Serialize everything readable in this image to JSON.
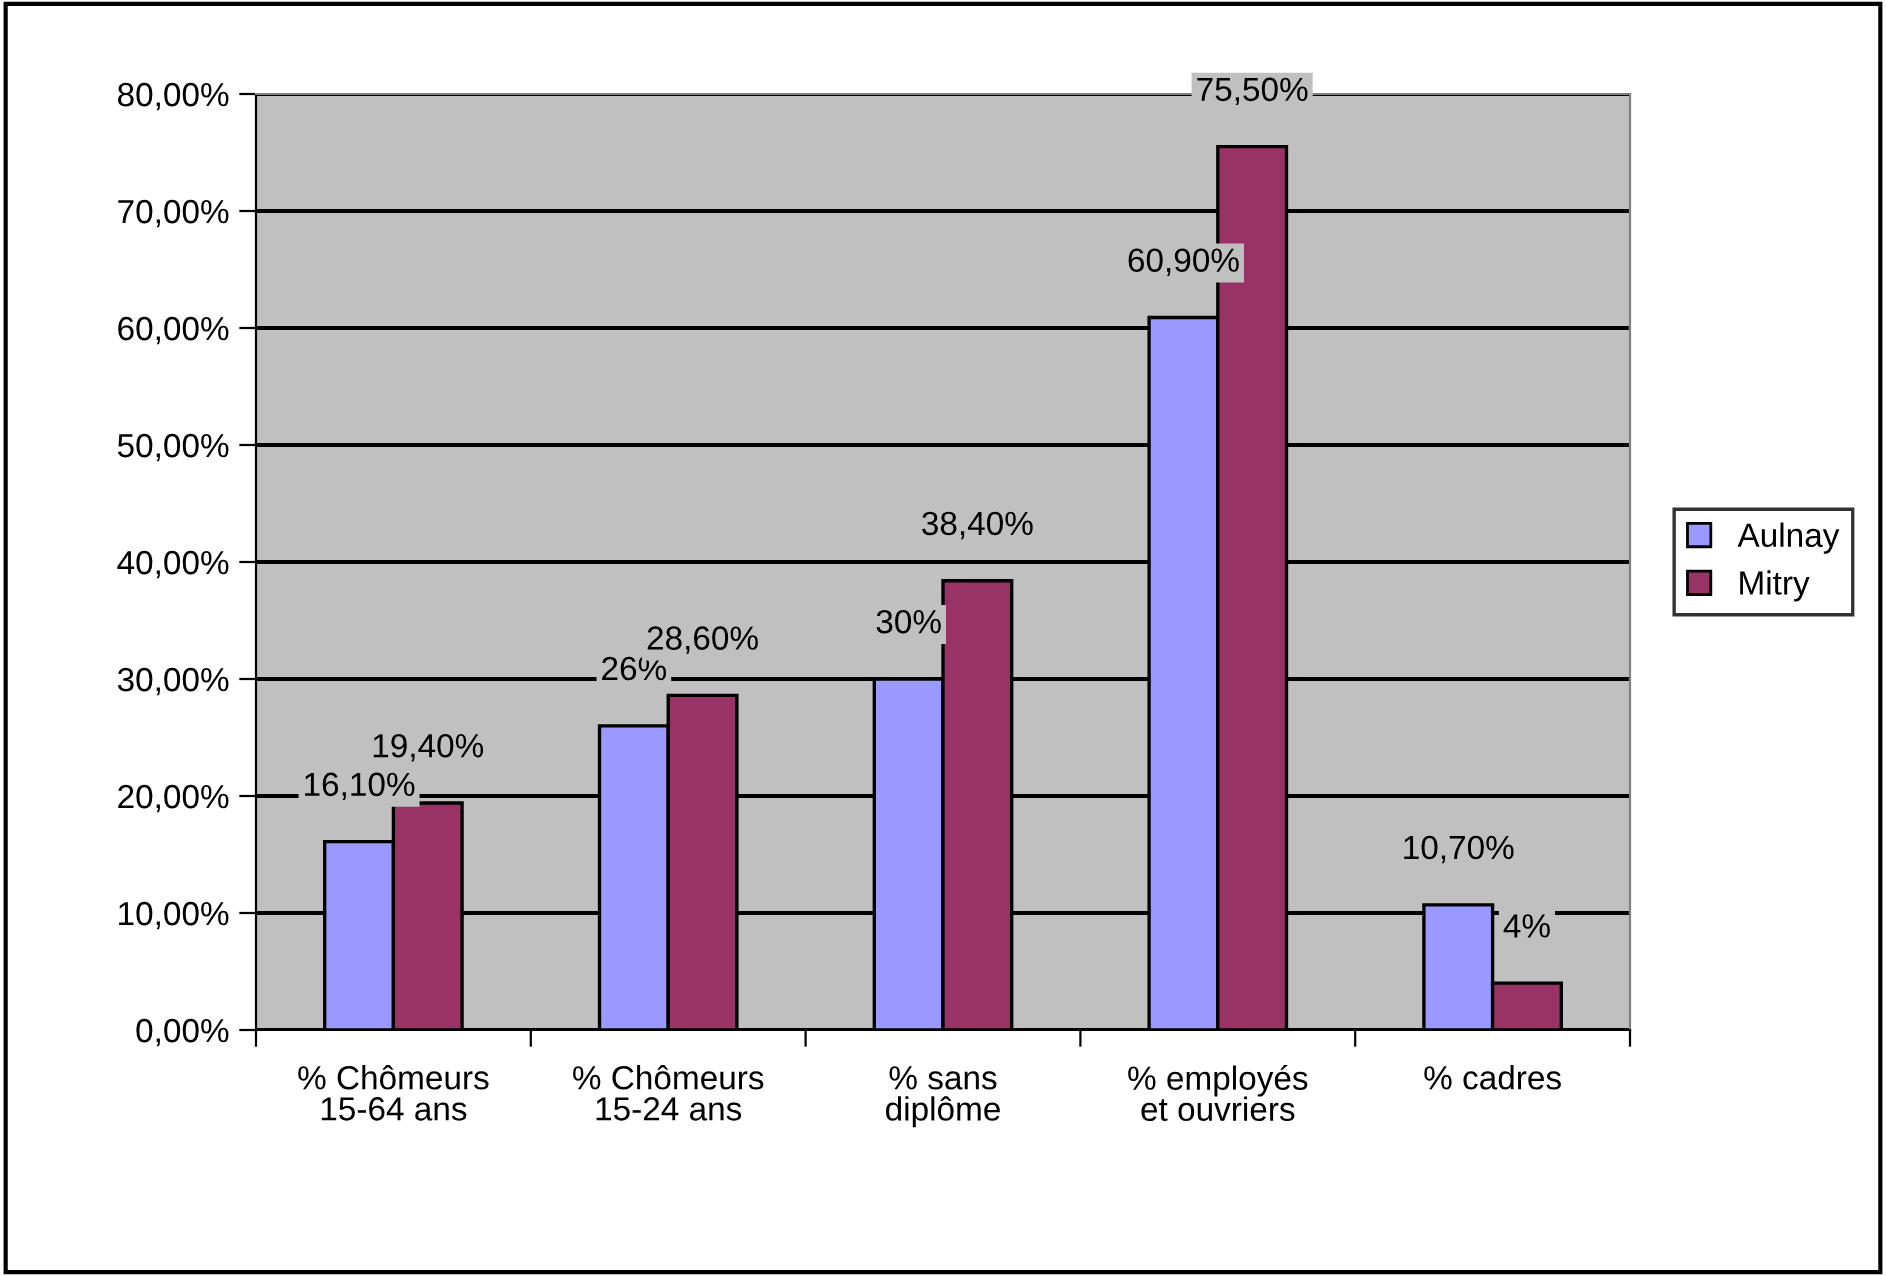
{
  "chart_data": {
    "type": "bar",
    "categories": [
      "% Chômeurs\n15-64 ans",
      "% Chômeurs\n15-24 ans",
      "% sans\ndiplôme",
      "% employés\net ouvriers",
      "% cadres"
    ],
    "series": [
      {
        "name": "Aulnay",
        "color": "#9999ff",
        "values": [
          16.1,
          26,
          30,
          60.9,
          10.7
        ],
        "value_labels": [
          "16,10%",
          "26%",
          "30%",
          "60,90%",
          "10,70%"
        ]
      },
      {
        "name": "Mitry",
        "color": "#993366",
        "values": [
          19.4,
          28.6,
          38.4,
          75.5,
          4
        ],
        "value_labels": [
          "19,40%",
          "28,60%",
          "38,40%",
          "75,50%",
          "4%"
        ]
      }
    ],
    "ylim": [
      0,
      80
    ],
    "yticks": [
      {
        "value": 0,
        "label": "0,00%"
      },
      {
        "value": 10,
        "label": "10,00%"
      },
      {
        "value": 20,
        "label": "20,00%"
      },
      {
        "value": 30,
        "label": "30,00%"
      },
      {
        "value": 40,
        "label": "40,00%"
      },
      {
        "value": 50,
        "label": "50,00%"
      },
      {
        "value": 60,
        "label": "60,00%"
      },
      {
        "value": 70,
        "label": "70,00%"
      },
      {
        "value": 80,
        "label": "80,00%"
      }
    ],
    "grid": "y",
    "legend": "right"
  }
}
